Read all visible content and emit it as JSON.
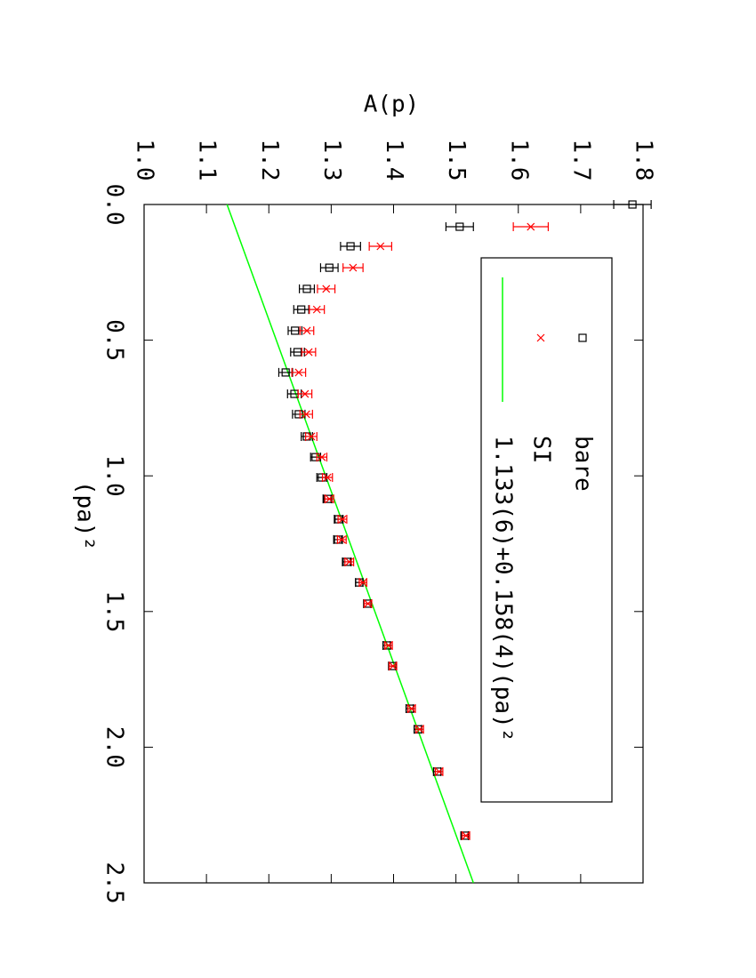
{
  "chart_data": {
    "type": "scatter",
    "x_label": "(pa)²",
    "y_label": "A(p)",
    "xlim": [
      0,
      2.5
    ],
    "ylim": [
      1.0,
      1.8
    ],
    "xticks": [
      {
        "value": 0,
        "label": "0.0"
      },
      0.5,
      {
        "value": 1,
        "label": "1.0"
      },
      1.5,
      {
        "value": 2,
        "label": "2.0"
      },
      2.5
    ],
    "yticks": [
      {
        "value": 1,
        "label": "1.0"
      },
      1.1,
      1.2,
      1.3,
      1.4,
      1.5,
      1.6,
      1.7,
      1.8
    ],
    "x": [
      0.0,
      0.082,
      0.154,
      0.233,
      0.311,
      0.387,
      0.465,
      0.544,
      0.619,
      0.698,
      0.773,
      0.855,
      0.931,
      1.006,
      1.085,
      1.16,
      1.235,
      1.317,
      1.393,
      1.471,
      1.625,
      1.701,
      1.858,
      1.934,
      2.09,
      2.326
    ],
    "series": [
      {
        "name": "bare",
        "color": "#000000",
        "marker": "square",
        "values": [
          1.783,
          1.506,
          1.331,
          1.297,
          1.261,
          1.252,
          1.242,
          1.246,
          1.227,
          1.241,
          1.248,
          1.261,
          1.275,
          1.285,
          1.294,
          1.312,
          1.311,
          1.325,
          1.345,
          1.358,
          1.389,
          1.398,
          1.426,
          1.439,
          1.47,
          1.514
        ],
        "errors": [
          0.03,
          0.022,
          0.016,
          0.014,
          0.012,
          0.012,
          0.011,
          0.011,
          0.011,
          0.011,
          0.01,
          0.009,
          0.008,
          0.008,
          0.007,
          0.007,
          0.007,
          0.007,
          0.006,
          0.006,
          0.006,
          0.006,
          0.006,
          0.006,
          0.006,
          0.006
        ]
      },
      {
        "name": "SI",
        "color": "#ff0000",
        "marker": "cross",
        "values": [
          null,
          1.62,
          1.379,
          1.335,
          1.292,
          1.277,
          1.261,
          1.264,
          1.248,
          1.258,
          1.26,
          1.268,
          1.285,
          1.294,
          1.297,
          1.318,
          1.317,
          1.329,
          1.351,
          1.359,
          1.392,
          1.399,
          1.429,
          1.442,
          1.473,
          1.516
        ],
        "errors": [
          null,
          0.028,
          0.018,
          0.016,
          0.014,
          0.012,
          0.011,
          0.011,
          0.011,
          0.011,
          0.01,
          0.009,
          0.008,
          0.008,
          0.007,
          0.007,
          0.007,
          0.007,
          0.006,
          0.006,
          0.006,
          0.006,
          0.006,
          0.006,
          0.006,
          0.006
        ]
      }
    ],
    "fit": {
      "name": "1.133(6)+0.158(4)(pa)²",
      "color": "#00ff00",
      "x": [
        0,
        2.5
      ],
      "values": [
        1.133,
        1.528
      ]
    }
  }
}
